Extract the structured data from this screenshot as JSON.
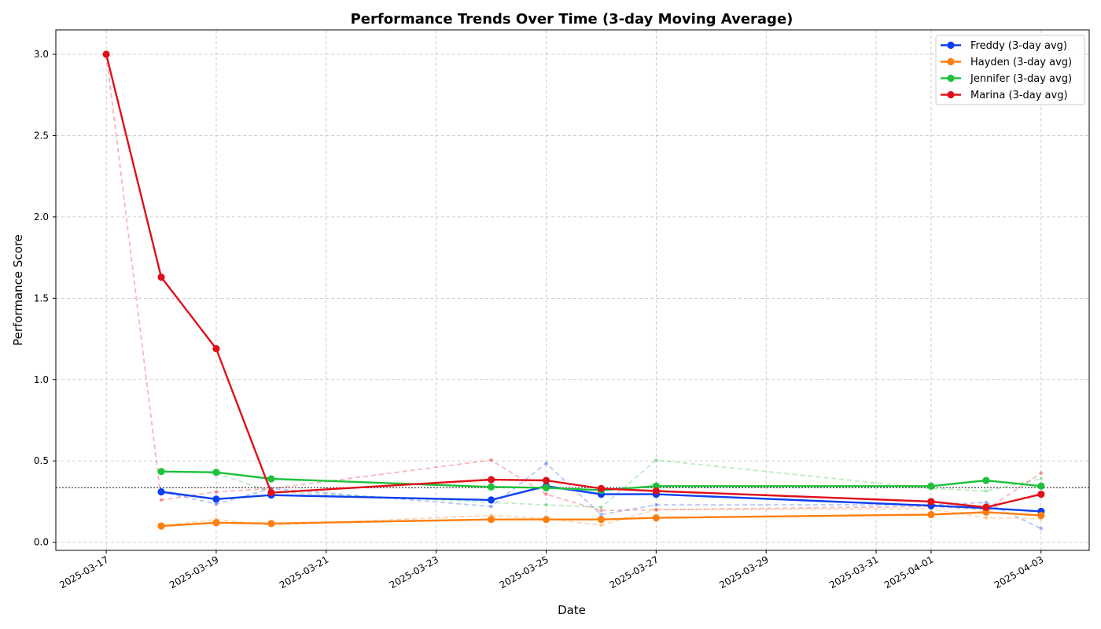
{
  "chart_data": {
    "type": "line",
    "title": "Performance Trends Over Time (3-day Moving Average)",
    "xlabel": "Date",
    "ylabel": "Performance Score",
    "xlim": [
      "2025-03-16T02:00",
      "2025-04-03T21:00"
    ],
    "ylim": [
      -0.05,
      3.15
    ],
    "xticks": [
      "2025-03-17",
      "2025-03-19",
      "2025-03-21",
      "2025-03-23",
      "2025-03-25",
      "2025-03-27",
      "2025-03-29",
      "2025-03-31",
      "2025-04-01",
      "2025-04-03"
    ],
    "yticks": [
      0.0,
      0.5,
      1.0,
      1.5,
      2.0,
      2.5,
      3.0
    ],
    "ytick_labels": [
      "0.0",
      "0.5",
      "1.0",
      "1.5",
      "2.0",
      "2.5",
      "3.0"
    ],
    "grid": true,
    "reference_line": 0.335,
    "legend_position": "top-right",
    "series": [
      {
        "name": "Freddy (3-day avg)",
        "color": "#0d3ff0",
        "points": [
          [
            "2025-03-18",
            0.31
          ],
          [
            "2025-03-19",
            0.265
          ],
          [
            "2025-03-20",
            0.29
          ],
          [
            "2025-03-24",
            0.26
          ],
          [
            "2025-03-25",
            0.345
          ],
          [
            "2025-03-26",
            0.295
          ],
          [
            "2025-03-27",
            0.295
          ],
          [
            "2025-04-01",
            0.225
          ],
          [
            "2025-04-02",
            0.21
          ],
          [
            "2025-04-03",
            0.19
          ]
        ],
        "raw": [
          [
            "2025-03-18",
            0.31
          ],
          [
            "2025-03-19",
            0.235
          ],
          [
            "2025-03-20",
            0.33
          ],
          [
            "2025-03-24",
            0.22
          ],
          [
            "2025-03-25",
            0.485
          ],
          [
            "2025-03-26",
            0.17
          ],
          [
            "2025-03-27",
            0.23
          ],
          [
            "2025-04-01",
            0.23
          ],
          [
            "2025-04-02",
            0.245
          ],
          [
            "2025-04-03",
            0.085
          ]
        ]
      },
      {
        "name": "Hayden (3-day avg)",
        "color": "#ff7f0e",
        "points": [
          [
            "2025-03-18",
            0.1
          ],
          [
            "2025-03-19",
            0.12
          ],
          [
            "2025-03-20",
            0.115
          ],
          [
            "2025-03-24",
            0.14
          ],
          [
            "2025-03-25",
            0.14
          ],
          [
            "2025-03-26",
            0.14
          ],
          [
            "2025-03-27",
            0.15
          ],
          [
            "2025-04-01",
            0.17
          ],
          [
            "2025-04-02",
            0.185
          ],
          [
            "2025-04-03",
            0.165
          ]
        ],
        "raw": [
          [
            "2025-03-18",
            0.1
          ],
          [
            "2025-03-19",
            0.14
          ],
          [
            "2025-03-20",
            0.105
          ],
          [
            "2025-03-24",
            0.165
          ],
          [
            "2025-03-25",
            0.145
          ],
          [
            "2025-03-26",
            0.105
          ],
          [
            "2025-03-27",
            0.2
          ],
          [
            "2025-04-01",
            0.205
          ],
          [
            "2025-04-02",
            0.15
          ],
          [
            "2025-04-03",
            0.145
          ]
        ]
      },
      {
        "name": "Jennifer (3-day avg)",
        "color": "#1ec13a",
        "points": [
          [
            "2025-03-18",
            0.435
          ],
          [
            "2025-03-19",
            0.43
          ],
          [
            "2025-03-20",
            0.39
          ],
          [
            "2025-03-24",
            0.34
          ],
          [
            "2025-03-25",
            0.335
          ],
          [
            "2025-03-26",
            0.32
          ],
          [
            "2025-03-27",
            0.345
          ],
          [
            "2025-04-01",
            0.345
          ],
          [
            "2025-04-02",
            0.38
          ],
          [
            "2025-04-03",
            0.345
          ]
        ],
        "raw": [
          [
            "2025-03-18",
            0.435
          ],
          [
            "2025-03-19",
            0.425
          ],
          [
            "2025-03-20",
            0.31
          ],
          [
            "2025-03-24",
            0.245
          ],
          [
            "2025-03-25",
            0.23
          ],
          [
            "2025-03-26",
            0.215
          ],
          [
            "2025-03-27",
            0.505
          ],
          [
            "2025-04-01",
            0.33
          ],
          [
            "2025-04-02",
            0.315
          ],
          [
            "2025-04-03",
            0.39
          ]
        ]
      },
      {
        "name": "Marina (3-day avg)",
        "color": "#e0101a",
        "points": [
          [
            "2025-03-17",
            3.0
          ],
          [
            "2025-03-18",
            1.63
          ],
          [
            "2025-03-19",
            1.19
          ],
          [
            "2025-03-20",
            0.305
          ],
          [
            "2025-03-24",
            0.385
          ],
          [
            "2025-03-25",
            0.38
          ],
          [
            "2025-03-26",
            0.33
          ],
          [
            "2025-03-27",
            0.315
          ],
          [
            "2025-04-01",
            0.25
          ],
          [
            "2025-04-02",
            0.215
          ],
          [
            "2025-04-03",
            0.295
          ]
        ],
        "raw": [
          [
            "2025-03-17",
            3.0
          ],
          [
            "2025-03-18",
            0.26
          ],
          [
            "2025-03-19",
            0.31
          ],
          [
            "2025-03-20",
            0.33
          ],
          [
            "2025-03-24",
            0.505
          ],
          [
            "2025-03-25",
            0.295
          ],
          [
            "2025-03-26",
            0.195
          ],
          [
            "2025-03-27",
            0.2
          ],
          [
            "2025-04-01",
            0.22
          ],
          [
            "2025-04-02",
            0.2
          ],
          [
            "2025-04-03",
            0.425
          ]
        ]
      }
    ]
  }
}
